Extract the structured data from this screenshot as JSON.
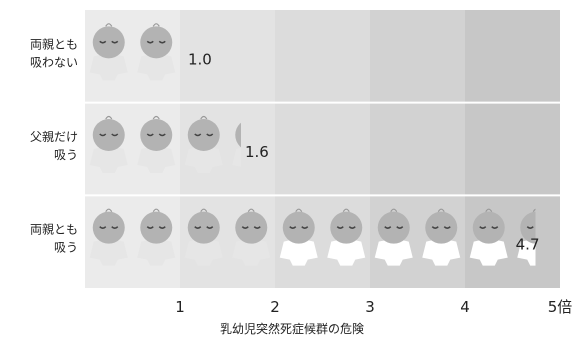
{
  "chart_data": {
    "type": "bar",
    "orientation": "horizontal",
    "categories": [
      [
        "両親とも",
        "吸わない"
      ],
      [
        "父親だけ",
        "吸う"
      ],
      [
        "両親とも",
        "吸う"
      ]
    ],
    "values": [
      1.0,
      1.6,
      4.7
    ],
    "value_labels": [
      "1.0",
      "1.6",
      "4.7"
    ],
    "xlabel": "乳幼児突然死症候群の危険",
    "xticks": [
      "1",
      "2",
      "3",
      "4",
      "5倍"
    ],
    "xlim": [
      0,
      5
    ],
    "style": "pictograph",
    "grid": true,
    "colors": {
      "band_shades": [
        "#ebebeb",
        "#e3e3e3",
        "#dcdcdc",
        "#d2d2d2",
        "#c7c7c7"
      ],
      "baby": "#b3b3b3",
      "baby_light": "#ffffff",
      "text": "#222222"
    }
  }
}
